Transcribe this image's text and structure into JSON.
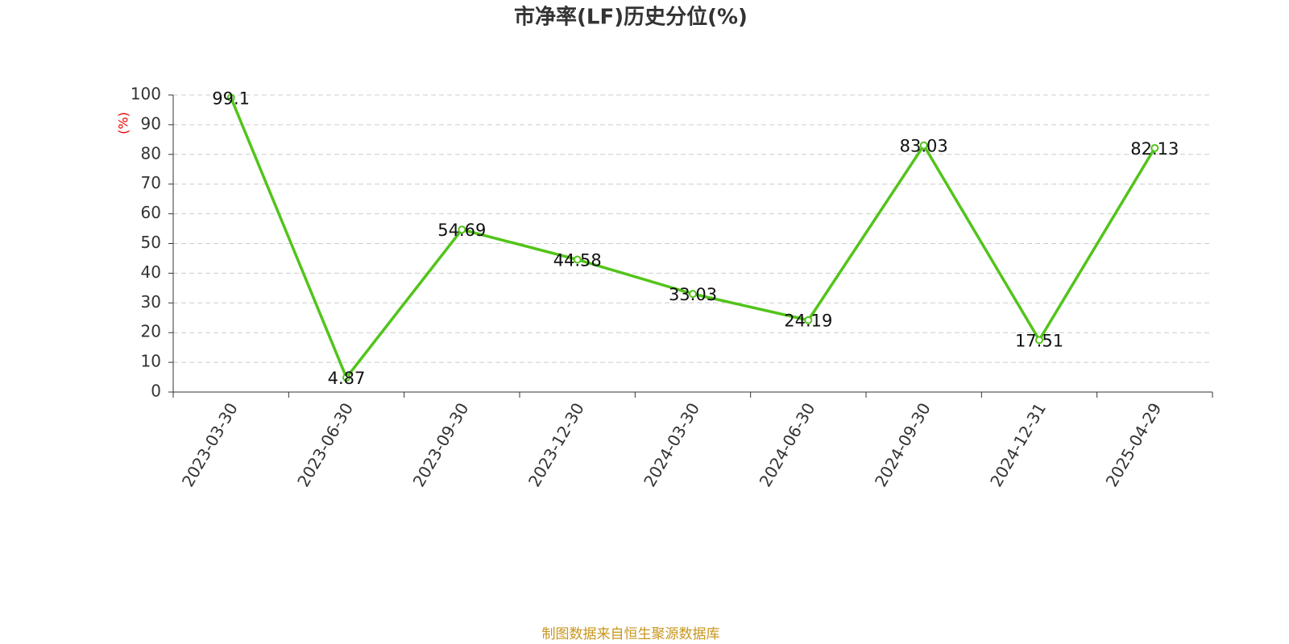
{
  "chart_data": {
    "type": "line",
    "title": "市净率(LF)历史分位(%)",
    "y_label": "(%)",
    "categories": [
      "2023-03-30",
      "2023-06-30",
      "2023-09-30",
      "2023-12-30",
      "2024-03-30",
      "2024-06-30",
      "2024-09-30",
      "2024-12-31",
      "2025-04-29"
    ],
    "values": [
      99.1,
      4.87,
      54.69,
      44.58,
      33.03,
      24.19,
      83.03,
      17.51,
      82.13
    ],
    "color": "#52c41a",
    "ylim": [
      0,
      100
    ],
    "yticks": [
      0,
      10,
      20,
      30,
      40,
      50,
      60,
      70,
      80,
      90,
      100
    ],
    "grid": true,
    "source": "制图数据来自恒生聚源数据库"
  }
}
